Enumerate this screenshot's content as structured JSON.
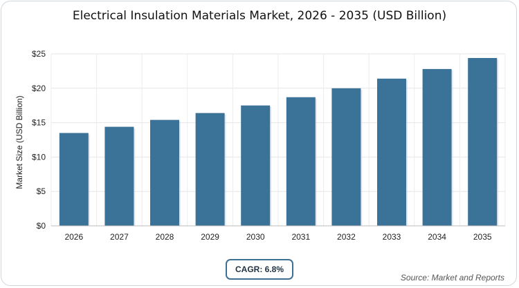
{
  "chart_data": {
    "type": "bar",
    "title": "Electrical Insulation Materials Market, 2026 - 2035 (USD Billion)",
    "xlabel": "",
    "ylabel": "Market Size (USD Billion)",
    "categories": [
      "2026",
      "2027",
      "2028",
      "2029",
      "2030",
      "2031",
      "2032",
      "2033",
      "2034",
      "2035"
    ],
    "values": [
      13.5,
      14.4,
      15.4,
      16.4,
      17.5,
      18.7,
      20.0,
      21.4,
      22.8,
      24.4
    ],
    "ylim": [
      0,
      25
    ],
    "yticks": [
      0,
      5,
      10,
      15,
      20,
      25
    ],
    "ytick_labels": [
      "$0",
      "$5",
      "$10",
      "$15",
      "$20",
      "$25"
    ],
    "grid": true,
    "bar_color": "#3a7298"
  },
  "cagr_label": "CAGR: 6.8%",
  "source": "Source: Market and Reports"
}
